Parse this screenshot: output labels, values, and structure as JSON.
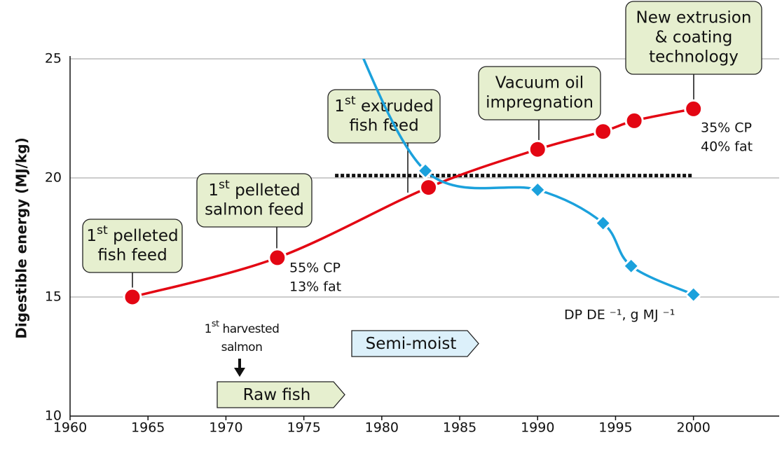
{
  "chart_data": {
    "type": "line",
    "ylabel": "Digestible energy (MJ/kg)",
    "xlim": [
      1960,
      2005.5
    ],
    "xticks": [
      1960,
      1965,
      1970,
      1975,
      1980,
      1985,
      1990,
      1995,
      2000
    ],
    "ylim": [
      10,
      25
    ],
    "yticks": [
      10,
      15,
      20,
      25
    ],
    "grid": true,
    "series": [
      {
        "color": "#e30613",
        "marker": "circle",
        "x": [
          1964,
          1973.3,
          1983,
          1990,
          1994.2,
          1996.2,
          2000
        ],
        "values": [
          15,
          16.65,
          19.6,
          21.2,
          21.95,
          22.4,
          22.9
        ]
      },
      {
        "color": "#1ba1dc",
        "marker": "diamond",
        "x": [
          1977.5,
          1982.8,
          1990,
          1994.2,
          1996,
          2000
        ],
        "values": [
          27,
          20.3,
          19.5,
          18.1,
          16.3,
          15.1
        ]
      }
    ],
    "reference_line": {
      "value": 20.1,
      "x": [
        1977,
        2000
      ],
      "color": "#111"
    },
    "callouts": [
      {
        "lines": [
          "1st pelleted",
          "fish feed"
        ]
      },
      {
        "lines": [
          "1st pelleted",
          "salmon feed"
        ]
      },
      {
        "lines": [
          "1st extruded",
          "fish feed"
        ]
      },
      {
        "lines": [
          "Vacuum oil",
          "impregnation"
        ]
      },
      {
        "lines": [
          "New extrusion",
          "& coating",
          "technology"
        ]
      }
    ],
    "notes": [
      {
        "lines": [
          "55% CP",
          "13% fat"
        ]
      },
      {
        "lines": [
          "35% CP",
          "40% fat"
        ]
      },
      {
        "lines": [
          "DP DE ⁻¹, g MJ ⁻¹"
        ]
      }
    ],
    "harvest_note": {
      "lines": [
        "1st harvested",
        "salmon"
      ]
    },
    "phases": [
      {
        "label": "Raw fish",
        "color": "#e6efcf"
      },
      {
        "label": "Semi-moist",
        "color": "#dcf0fa"
      }
    ]
  }
}
